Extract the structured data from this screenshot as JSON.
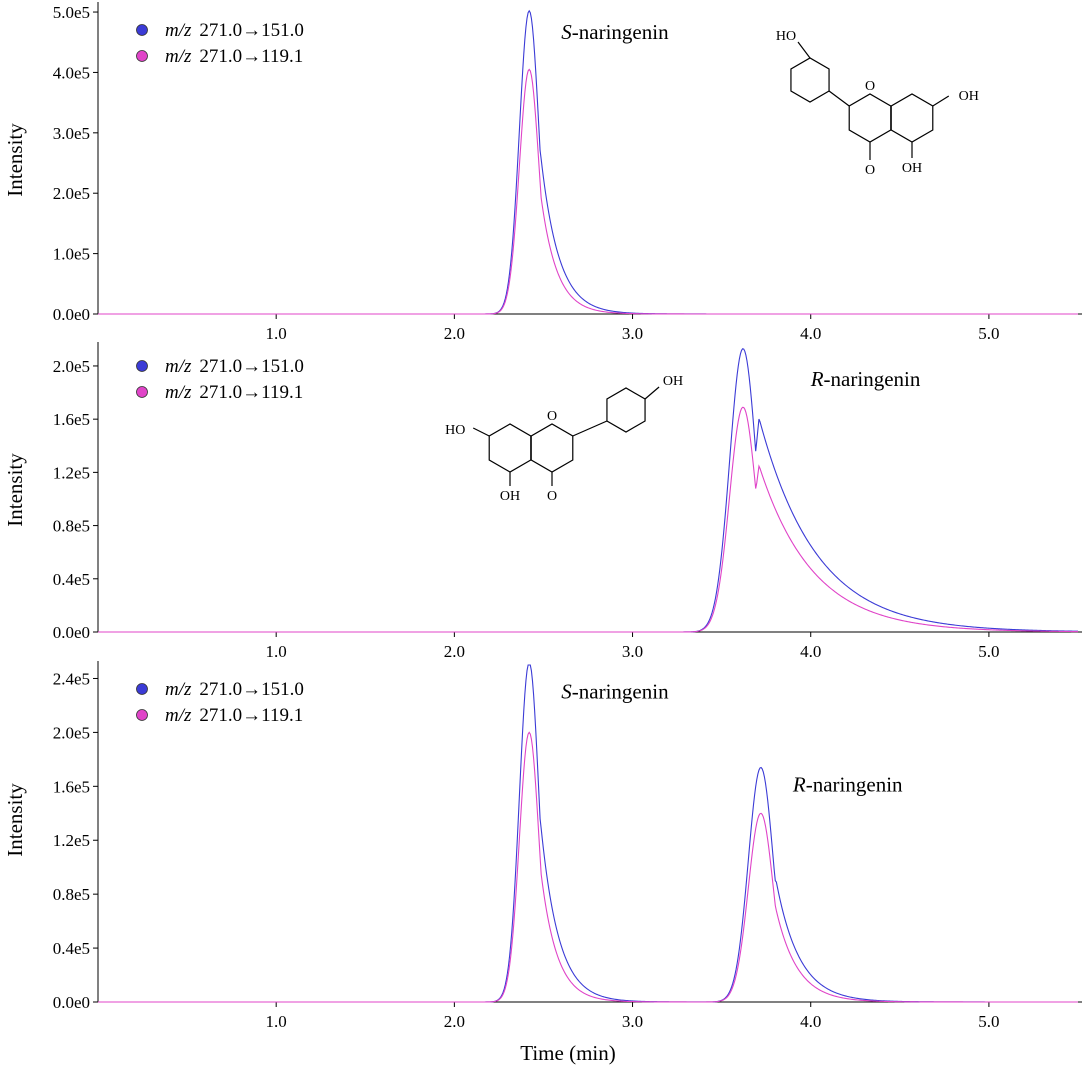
{
  "chart_data": [
    {
      "type": "line",
      "ylabel": "Intensity",
      "xlabel": "",
      "xlim": [
        0,
        5.5
      ],
      "ylim": [
        0,
        5.1
      ],
      "y_scale_label": "e5",
      "x_ticks": [
        "1.0",
        "2.0",
        "3.0",
        "4.0",
        "5.0"
      ],
      "x_tick_values": [
        1,
        2,
        3,
        4,
        5
      ],
      "y_ticks": [
        "0.0e0",
        "1.0e5",
        "2.0e5",
        "3.0e5",
        "4.0e5",
        "5.0e5"
      ],
      "y_tick_values": [
        0,
        1,
        2,
        3,
        4,
        5
      ],
      "grid": false,
      "legend_position": "top-left",
      "series": [
        {
          "name": "m/z 271.0→151.0",
          "name_italic": "m/z",
          "name_rest": "271.0→151.0",
          "color": "#3b3bd6",
          "peaks": [
            {
              "rt": 2.42,
              "height": 5.02,
              "sigma": 0.055,
              "tau": 0.1
            }
          ]
        },
        {
          "name": "m/z 271.0→119.1",
          "name_italic": "m/z",
          "name_rest": "271.0→119.1",
          "color": "#e044c8",
          "peaks": [
            {
              "rt": 2.42,
              "height": 4.05,
              "sigma": 0.055,
              "tau": 0.09
            }
          ]
        }
      ],
      "annotations": [
        {
          "italic": "S",
          "text": "-naringenin",
          "x": 2.6,
          "y": 4.55
        }
      ],
      "structure": {
        "atoms": [
          "HO",
          "O",
          "OH",
          "O",
          "OH"
        ],
        "orientation": "S"
      }
    },
    {
      "type": "line",
      "ylabel": "Intensity",
      "xlabel": "",
      "xlim": [
        0,
        5.5
      ],
      "ylim": [
        0,
        2.15
      ],
      "y_scale_label": "e5",
      "x_ticks": [
        "1.0",
        "2.0",
        "3.0",
        "4.0",
        "5.0"
      ],
      "x_tick_values": [
        1,
        2,
        3,
        4,
        5
      ],
      "y_ticks": [
        "0.0e0",
        "0.4e5",
        "0.8e5",
        "1.2e5",
        "1.6e5",
        "2.0e5"
      ],
      "y_tick_values": [
        0,
        0.4,
        0.8,
        1.2,
        1.6,
        2.0
      ],
      "grid": false,
      "legend_position": "top-left",
      "series": [
        {
          "name": "m/z 271.0→151.0",
          "name_italic": "m/z",
          "name_rest": "271.0→151.0",
          "color": "#3b3bd6",
          "peaks": [
            {
              "rt": 3.62,
              "height": 2.13,
              "sigma": 0.075,
              "tau": 0.32
            }
          ]
        },
        {
          "name": "m/z 271.0→119.1",
          "name_italic": "m/z",
          "name_rest": "271.0→119.1",
          "color": "#e044c8",
          "peaks": [
            {
              "rt": 3.62,
              "height": 1.69,
              "sigma": 0.075,
              "tau": 0.3
            }
          ]
        }
      ],
      "annotations": [
        {
          "italic": "R",
          "text": "-naringenin",
          "x": 4.0,
          "y": 1.85
        }
      ],
      "structure": {
        "atoms": [
          "HO",
          "O",
          "OH",
          "OH",
          "O"
        ],
        "orientation": "R"
      }
    },
    {
      "type": "line",
      "ylabel": "Intensity",
      "xlabel": "Time (min)",
      "xlim": [
        0,
        5.5
      ],
      "ylim": [
        0,
        2.5
      ],
      "y_scale_label": "e5",
      "x_ticks": [
        "1.0",
        "2.0",
        "3.0",
        "4.0",
        "5.0"
      ],
      "x_tick_values": [
        1,
        2,
        3,
        4,
        5
      ],
      "y_ticks": [
        "0.0e0",
        "0.4e5",
        "0.8e5",
        "1.2e5",
        "1.6e5",
        "2.0e5",
        "2.4e5"
      ],
      "y_tick_values": [
        0,
        0.4,
        0.8,
        1.2,
        1.6,
        2.0,
        2.4
      ],
      "grid": false,
      "legend_position": "top-left",
      "series": [
        {
          "name": "m/z 271.0→151.0",
          "name_italic": "m/z",
          "name_rest": "271.0→151.0",
          "color": "#3b3bd6",
          "peaks": [
            {
              "rt": 2.42,
              "height": 2.52,
              "sigma": 0.055,
              "tau": 0.1
            },
            {
              "rt": 3.72,
              "height": 1.74,
              "sigma": 0.07,
              "tau": 0.13
            }
          ]
        },
        {
          "name": "m/z 271.0→119.1",
          "name_italic": "m/z",
          "name_rest": "271.0→119.1",
          "color": "#e044c8",
          "peaks": [
            {
              "rt": 2.42,
              "height": 2.0,
              "sigma": 0.055,
              "tau": 0.09
            },
            {
              "rt": 3.72,
              "height": 1.4,
              "sigma": 0.07,
              "tau": 0.12
            }
          ]
        }
      ],
      "annotations": [
        {
          "italic": "S",
          "text": "-naringenin",
          "x": 2.6,
          "y": 2.25
        },
        {
          "italic": "R",
          "text": "-naringenin",
          "x": 3.9,
          "y": 1.56
        }
      ]
    }
  ]
}
